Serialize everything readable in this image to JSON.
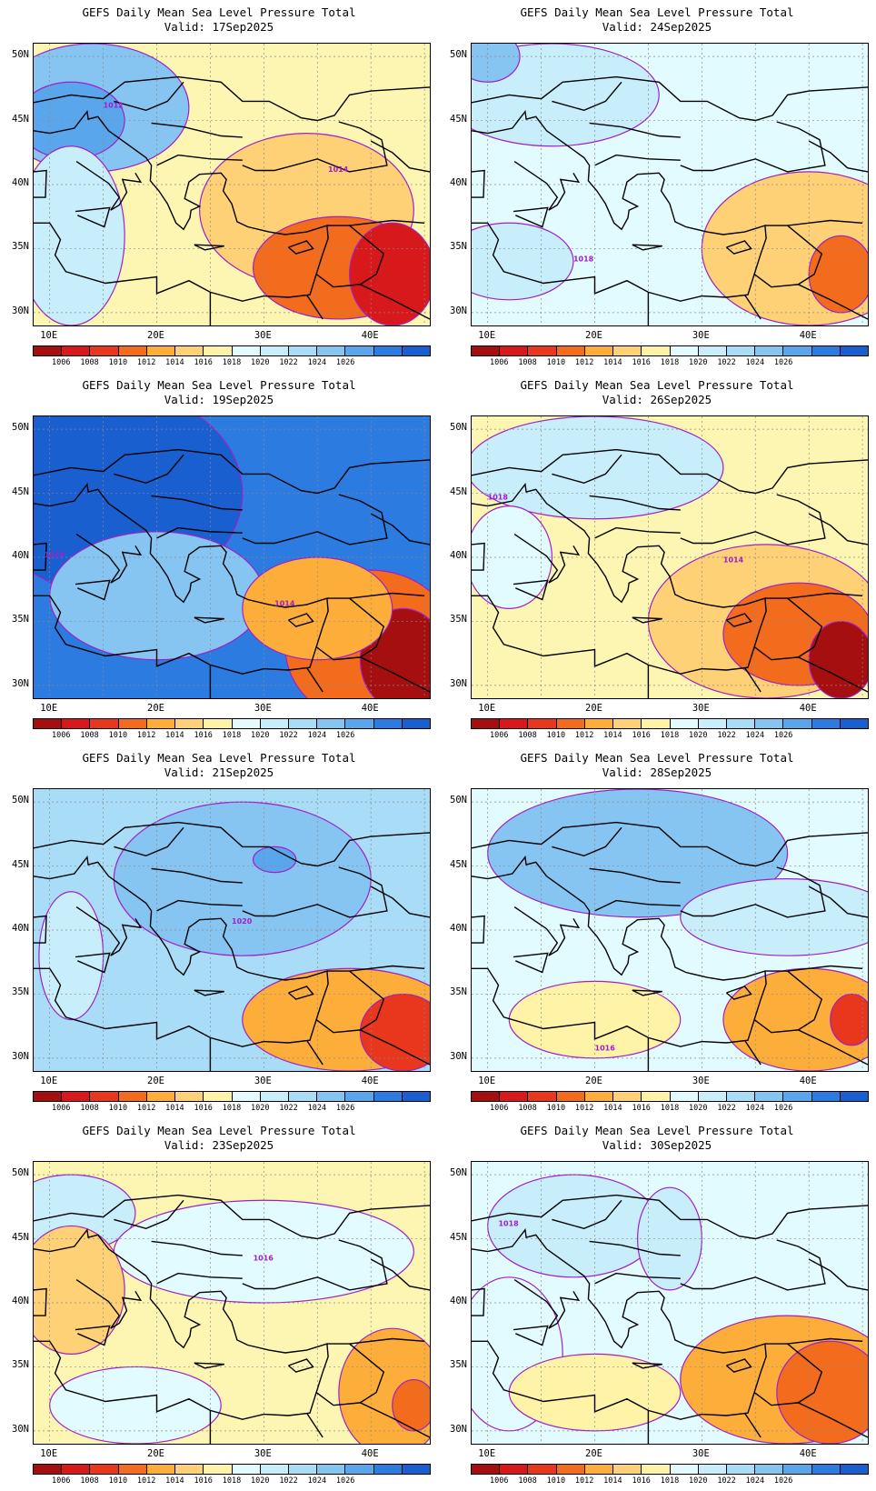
{
  "panels": [
    {
      "title": "GEFS Daily Mean Sea Level Pressure Total",
      "valid": "Valid: 17Sep2025",
      "label": "1012",
      "label2": "1014",
      "base": "#fdf6b3",
      "accent": "#e8371c"
    },
    {
      "title": "GEFS Daily Mean Sea Level Pressure Total",
      "valid": "Valid: 24Sep2025",
      "label": "1018",
      "label2": "",
      "base": "#e2fbff",
      "accent": "#f38a1f"
    },
    {
      "title": "GEFS Daily Mean Sea Level Pressure Total",
      "valid": "Valid: 19Sep2025",
      "label": "1024",
      "label2": "1014",
      "base": "#2b7be0",
      "accent": "#c8110f"
    },
    {
      "title": "GEFS Daily Mean Sea Level Pressure Total",
      "valid": "Valid: 26Sep2025",
      "label": "1018",
      "label2": "1014",
      "base": "#fdf6b3",
      "accent": "#e8371c"
    },
    {
      "title": "GEFS Daily Mean Sea Level Pressure Total",
      "valid": "Valid: 21Sep2025",
      "label": "1020",
      "label2": "",
      "base": "#a9dcf6",
      "accent": "#f06a1c"
    },
    {
      "title": "GEFS Daily Mean Sea Level Pressure Total",
      "valid": "Valid: 28Sep2025",
      "label": "1016",
      "label2": "",
      "base": "#e2fbff",
      "accent": "#f06a1c"
    },
    {
      "title": "GEFS Daily Mean Sea Level Pressure Total",
      "valid": "Valid: 23Sep2025",
      "label": "1016",
      "label2": "",
      "base": "#fdf6b3",
      "accent": "#f38a1f"
    },
    {
      "title": "GEFS Daily Mean Sea Level Pressure Total",
      "valid": "Valid: 30Sep2025",
      "label": "1018",
      "label2": "",
      "base": "#e2fbff",
      "accent": "#e8371c"
    }
  ],
  "axes": {
    "lat_labels": [
      "50N",
      "45N",
      "40N",
      "35N",
      "30N"
    ],
    "lon_labels": [
      "10E",
      "20E",
      "30E",
      "40E"
    ]
  },
  "colorbar": {
    "colors": [
      "#a50f0f",
      "#d7191c",
      "#e8371c",
      "#f36b1d",
      "#fdae3a",
      "#fed177",
      "#fff3a8",
      "#e2fbff",
      "#c8eefb",
      "#a9dcf6",
      "#86c4f2",
      "#5aa6ec",
      "#2b7be0",
      "#1a5fd0"
    ],
    "labels": [
      "1006",
      "1008",
      "1010",
      "1012",
      "1014",
      "1016",
      "1018",
      "1020",
      "1022",
      "1024",
      "1026"
    ]
  }
}
